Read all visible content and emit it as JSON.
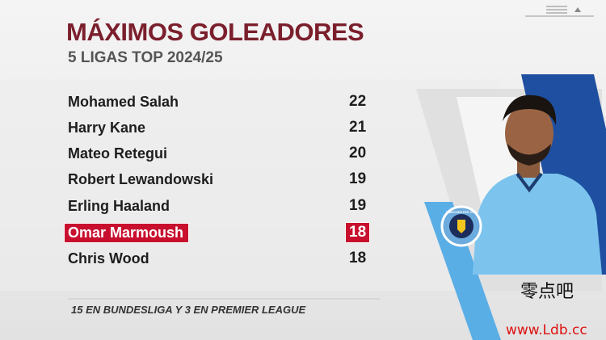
{
  "header": {
    "title": "MÁXIMOS GOLEADORES",
    "subtitle": "5 LIGAS TOP 2024/25"
  },
  "table": {
    "rows": [
      [
        "Mohamed Salah",
        "22"
      ],
      [
        "Harry Kane",
        "21"
      ],
      [
        "Mateo Retegui",
        "20"
      ],
      [
        "Robert Lewandowski",
        "19"
      ],
      [
        "Erling Haaland",
        "19"
      ],
      [
        "Omar Marmoush",
        "18"
      ],
      [
        "Chris Wood",
        "18"
      ]
    ]
  },
  "footnote": "15 EN BUNDESLIGA Y 3 EN PREMIER LEAGUE",
  "badge": "MANCHESTER CITY",
  "watermark": {
    "logo": "零点吧",
    "url": "www.Ldb.cc"
  }
}
